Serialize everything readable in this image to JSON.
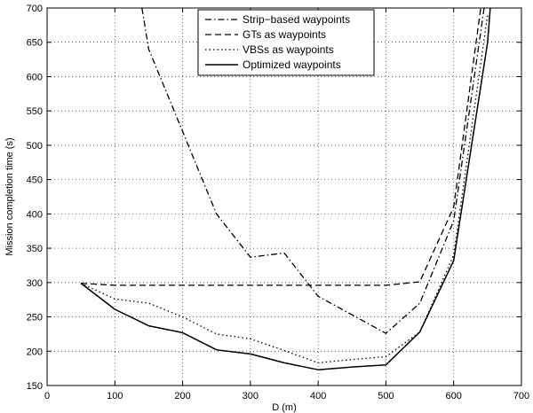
{
  "chart_data": {
    "type": "line",
    "xlabel": "D (m)",
    "ylabel": "Mission completion time (s)",
    "xlim": [
      0,
      700
    ],
    "ylim": [
      150,
      700
    ],
    "xticks": [
      0,
      100,
      200,
      300,
      400,
      500,
      600,
      700
    ],
    "yticks": [
      150,
      200,
      250,
      300,
      350,
      400,
      450,
      500,
      550,
      600,
      650,
      700
    ],
    "grid": true,
    "legend_position": "top-center",
    "series": [
      {
        "name": "Strip−based waypoints",
        "style": "dashdot",
        "color": "#000000",
        "x": [
          140,
          150,
          200,
          250,
          300,
          350,
          400,
          500,
          550,
          600,
          645
        ],
        "y": [
          700,
          640,
          520,
          400,
          337,
          343,
          280,
          226,
          270,
          390,
          700
        ]
      },
      {
        "name": "GTs as waypoints",
        "style": "dashed",
        "color": "#000000",
        "x": [
          50,
          100,
          150,
          200,
          250,
          300,
          350,
          400,
          450,
          500,
          550,
          600,
          640
        ],
        "y": [
          299,
          296,
          296,
          296,
          296,
          296,
          296,
          296,
          296,
          296,
          301,
          410,
          700
        ]
      },
      {
        "name": "VBSs as waypoints",
        "style": "dotted",
        "color": "#000000",
        "x": [
          50,
          100,
          150,
          200,
          250,
          300,
          350,
          400,
          450,
          500,
          550,
          600,
          650
        ],
        "y": [
          299,
          276,
          270,
          250,
          225,
          218,
          201,
          183,
          188,
          192,
          228,
          340,
          690
        ]
      },
      {
        "name": "Optimized waypoints",
        "style": "solid",
        "color": "#000000",
        "x": [
          50,
          100,
          150,
          200,
          250,
          300,
          350,
          400,
          450,
          500,
          550,
          600,
          650,
          654
        ],
        "y": [
          299,
          261,
          237,
          227,
          202,
          196,
          183,
          173,
          177,
          180,
          228,
          332,
          650,
          700
        ]
      }
    ]
  }
}
